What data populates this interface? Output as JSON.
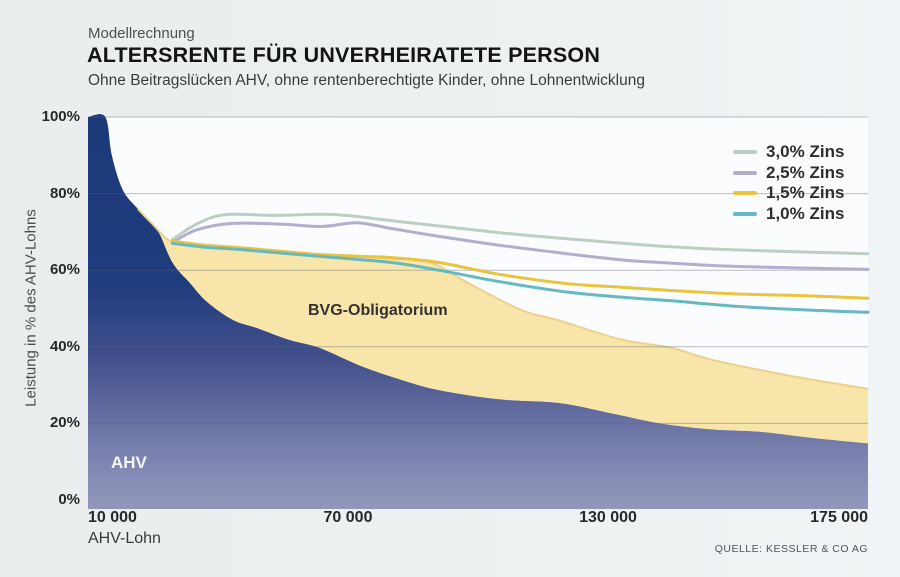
{
  "header": {
    "kicker": "Modellrechnung",
    "title": "ALTERSRENTE FÜR UNVERHEIRATETE PERSON",
    "subtitle": "Ohne Beitragslücken AHV, ohne rentenberechtigte Kinder, ohne Lohnentwicklung"
  },
  "source": "QUELLE: KESSLER & CO AG",
  "colors": {
    "plot_bg": "#fbfcfd",
    "grid": "rgba(90,100,118,0.42)",
    "axis_bar": "#9096ba",
    "bvg_fill": "#f8e5a9",
    "bvg_rim": "#eed08d",
    "ahv_grad": [
      [
        "0",
        "#1c3979"
      ],
      [
        "0.42",
        "#1f3c7e"
      ],
      [
        "0.62",
        "#42508c"
      ],
      [
        "0.8",
        "#6e76a6"
      ],
      [
        "0.94",
        "#8990b8"
      ],
      [
        "1",
        "#9298bc"
      ]
    ]
  },
  "chart_data": {
    "type": "area",
    "title": "Altersrente für unverheiratete Person",
    "xlabel": "AHV-Lohn",
    "ylabel": "Leistung in % des AHV-Lohns",
    "ylim": [
      0,
      100
    ],
    "y_ticks": [
      "100%",
      "80%",
      "60%",
      "40%",
      "20%",
      "0%"
    ],
    "x_ticks": [
      "10 000",
      "70 000",
      "130 000",
      "175 000"
    ],
    "x_scale_breakpoints": [
      [
        10000,
        0
      ],
      [
        70000,
        0.3333
      ],
      [
        130000,
        0.6667
      ],
      [
        175000,
        1
      ]
    ],
    "legend_position": "top-right",
    "grid": true,
    "areas": [
      {
        "id": "ahv",
        "label": "AHV",
        "points": [
          [
            10000,
            100
          ],
          [
            14000,
            100
          ],
          [
            15500,
            90
          ],
          [
            18000,
            81
          ],
          [
            21500,
            76
          ],
          [
            26000,
            70.5
          ],
          [
            29500,
            62
          ],
          [
            33500,
            56.7
          ],
          [
            37500,
            51.7
          ],
          [
            43500,
            47
          ],
          [
            49000,
            44.9
          ],
          [
            56500,
            41.8
          ],
          [
            63500,
            39.7
          ],
          [
            73000,
            35
          ],
          [
            82000,
            31.5
          ],
          [
            91000,
            28.7
          ],
          [
            105000,
            26.3
          ],
          [
            119000,
            25.3
          ],
          [
            131000,
            22.5
          ],
          [
            139000,
            20
          ],
          [
            147500,
            18.5
          ],
          [
            156500,
            17.8
          ],
          [
            165000,
            16.3
          ],
          [
            175000,
            14.8
          ]
        ]
      },
      {
        "id": "bvg",
        "label": "BVG-Obligatorium",
        "points": [
          [
            21500,
            76
          ],
          [
            24500,
            72.5
          ],
          [
            29500,
            67.3
          ],
          [
            37000,
            66.3
          ],
          [
            45000,
            65.8
          ],
          [
            63500,
            64
          ],
          [
            80000,
            63
          ],
          [
            89000,
            62
          ],
          [
            98000,
            56.5
          ],
          [
            110000,
            49.6
          ],
          [
            119000,
            46.8
          ],
          [
            132000,
            42
          ],
          [
            141000,
            39.7
          ],
          [
            148000,
            36.6
          ],
          [
            159500,
            33
          ],
          [
            167000,
            31
          ],
          [
            175000,
            29
          ]
        ]
      }
    ],
    "series": [
      {
        "name": "3,0% Zins",
        "color": "#bccfc3",
        "points": [
          [
            29500,
            68
          ],
          [
            35000,
            72
          ],
          [
            41500,
            74.5
          ],
          [
            53000,
            74.3
          ],
          [
            64000,
            74.6
          ],
          [
            70500,
            74.2
          ],
          [
            79500,
            73
          ],
          [
            89000,
            71.8
          ],
          [
            105000,
            69.8
          ],
          [
            120500,
            68.2
          ],
          [
            139000,
            66.3
          ],
          [
            152000,
            65.3
          ],
          [
            175000,
            64.3
          ]
        ]
      },
      {
        "name": "2,5% Zins",
        "color": "#b2aed0",
        "points": [
          [
            29500,
            67.2
          ],
          [
            35000,
            70.5
          ],
          [
            43000,
            72.2
          ],
          [
            55000,
            72
          ],
          [
            64000,
            71.4
          ],
          [
            72000,
            72.4
          ],
          [
            79500,
            71
          ],
          [
            89000,
            69.2
          ],
          [
            105000,
            66.5
          ],
          [
            120500,
            64.3
          ],
          [
            133000,
            62.6
          ],
          [
            139000,
            62
          ],
          [
            152000,
            61
          ],
          [
            175000,
            60.2
          ]
        ]
      },
      {
        "name": "1,5% Zins",
        "color": "#e9c43e",
        "points": [
          [
            29500,
            67.6
          ],
          [
            37000,
            66.5
          ],
          [
            45000,
            65.9
          ],
          [
            63500,
            64.1
          ],
          [
            80000,
            63.3
          ],
          [
            91000,
            62
          ],
          [
            105000,
            58.9
          ],
          [
            120500,
            56.5
          ],
          [
            132000,
            55.6
          ],
          [
            141000,
            54.7
          ],
          [
            152000,
            53.8
          ],
          [
            163000,
            53.4
          ],
          [
            175000,
            52.7
          ]
        ]
      },
      {
        "name": "1,0% Zins",
        "color": "#66b9c2",
        "points": [
          [
            29500,
            67
          ],
          [
            37000,
            66
          ],
          [
            45000,
            65.4
          ],
          [
            63500,
            63.6
          ],
          [
            80000,
            62
          ],
          [
            91000,
            60
          ],
          [
            105000,
            57
          ],
          [
            120500,
            54.3
          ],
          [
            132000,
            53
          ],
          [
            141000,
            52
          ],
          [
            152000,
            50.6
          ],
          [
            163000,
            49.7
          ],
          [
            175000,
            49
          ]
        ]
      }
    ]
  },
  "y_tick_tops": [
    109,
    185.6,
    262.2,
    338.8,
    415.4,
    492
  ]
}
